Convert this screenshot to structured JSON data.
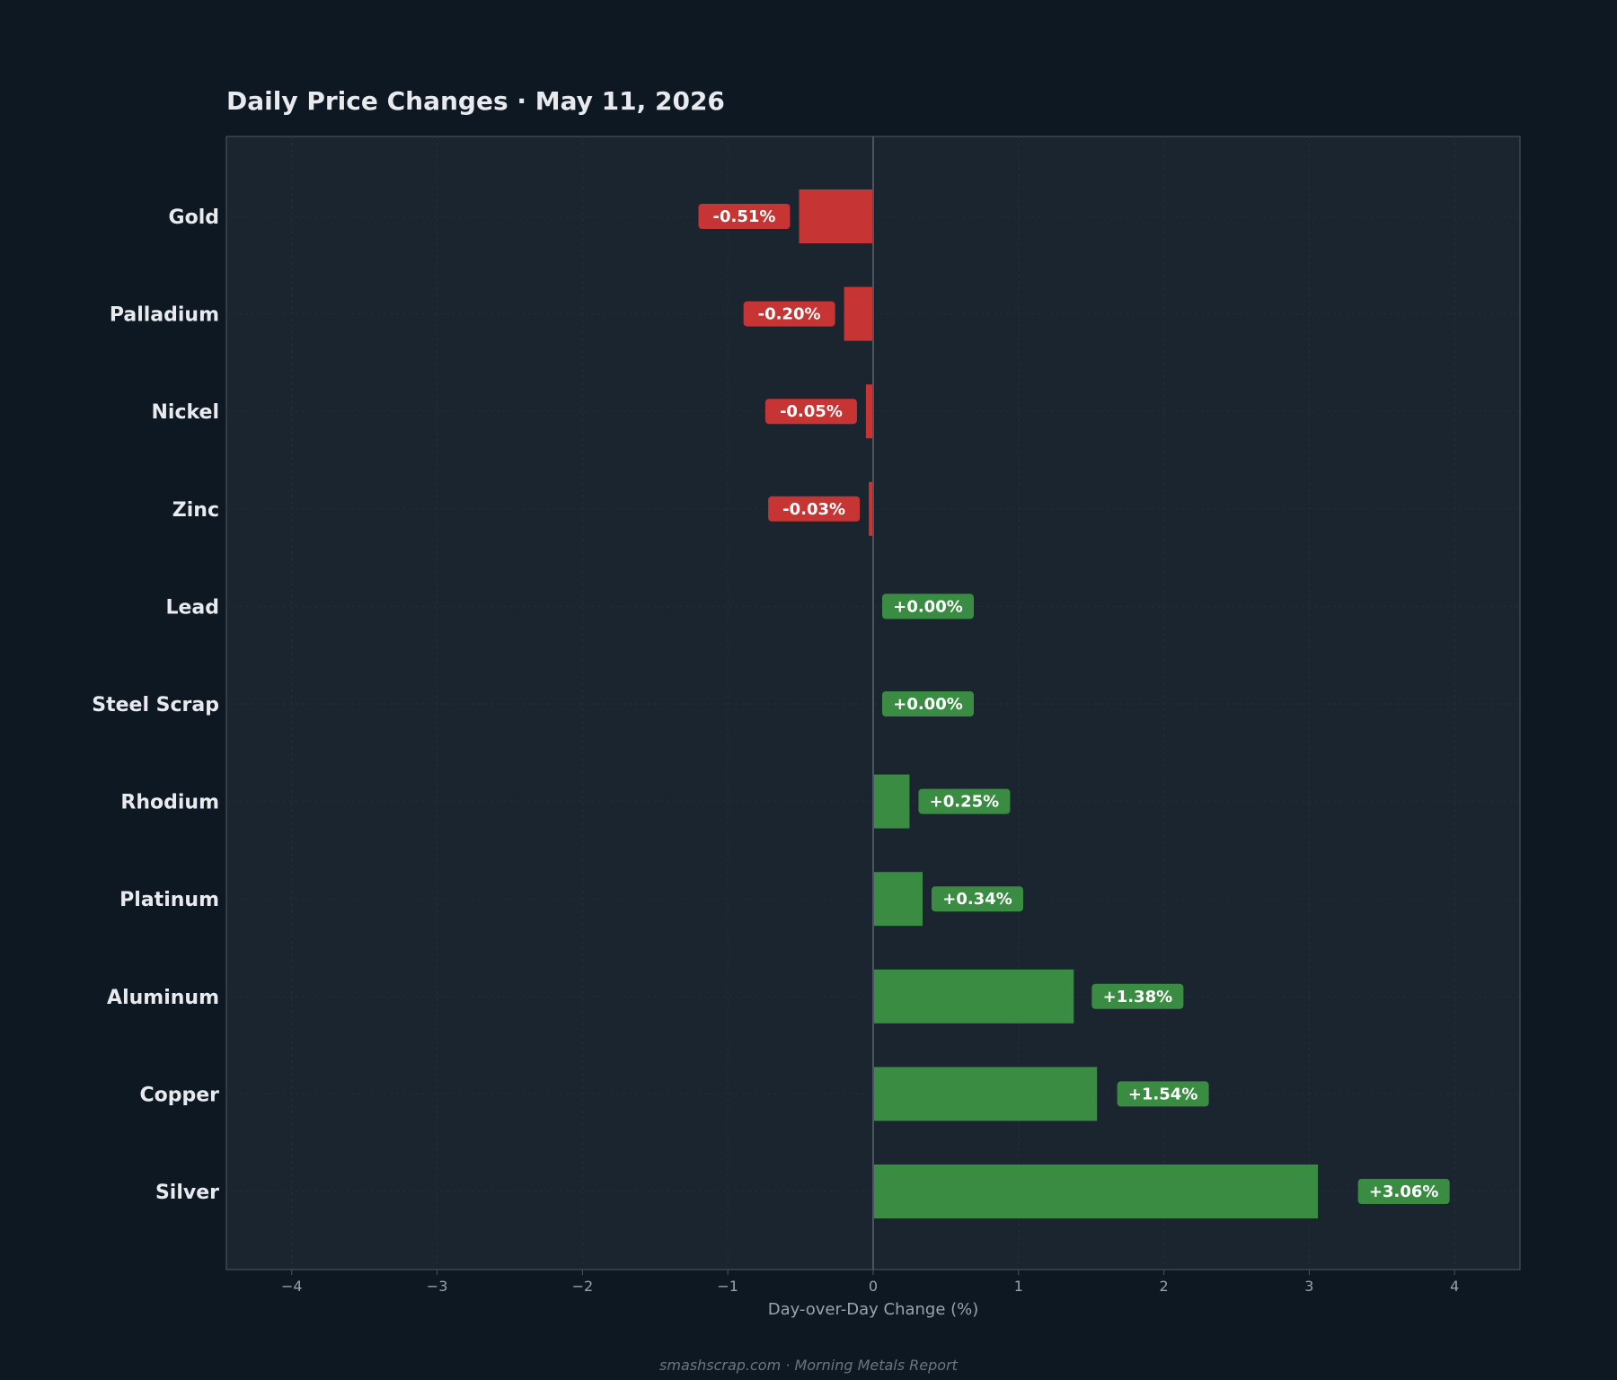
{
  "chart_data": {
    "type": "bar",
    "orientation": "horizontal",
    "title": "Daily Price Changes  ·  May 11, 2026",
    "xlabel": "Day-over-Day Change (%)",
    "ylabel": "",
    "xlim": [
      -4.45,
      4.45
    ],
    "xticks": [
      -4,
      -3,
      -2,
      -1,
      0,
      1,
      2,
      3,
      4
    ],
    "xtick_labels": [
      "−4",
      "−3",
      "−2",
      "−1",
      "0",
      "1",
      "2",
      "3",
      "4"
    ],
    "categories": [
      "Gold",
      "Palladium",
      "Nickel",
      "Zinc",
      "Lead",
      "Steel Scrap",
      "Rhodium",
      "Platinum",
      "Aluminum",
      "Copper",
      "Silver"
    ],
    "values": [
      -0.51,
      -0.2,
      -0.05,
      -0.03,
      0.0,
      0.0,
      0.25,
      0.34,
      1.38,
      1.54,
      3.06
    ],
    "labels": [
      "-0.51%",
      "-0.20%",
      "-0.05%",
      "-0.03%",
      "+0.00%",
      "+0.00%",
      "+0.25%",
      "+0.34%",
      "+1.38%",
      "+1.54%",
      "+3.06%"
    ],
    "grid": true,
    "colors": {
      "negative": "#c73434",
      "positive": "#3a8c42",
      "background": "#0e1822",
      "plot_background": "#1b2530",
      "zero_line": "#4a5561"
    }
  },
  "footer": "smashscrap.com  ·  Morning Metals Report"
}
